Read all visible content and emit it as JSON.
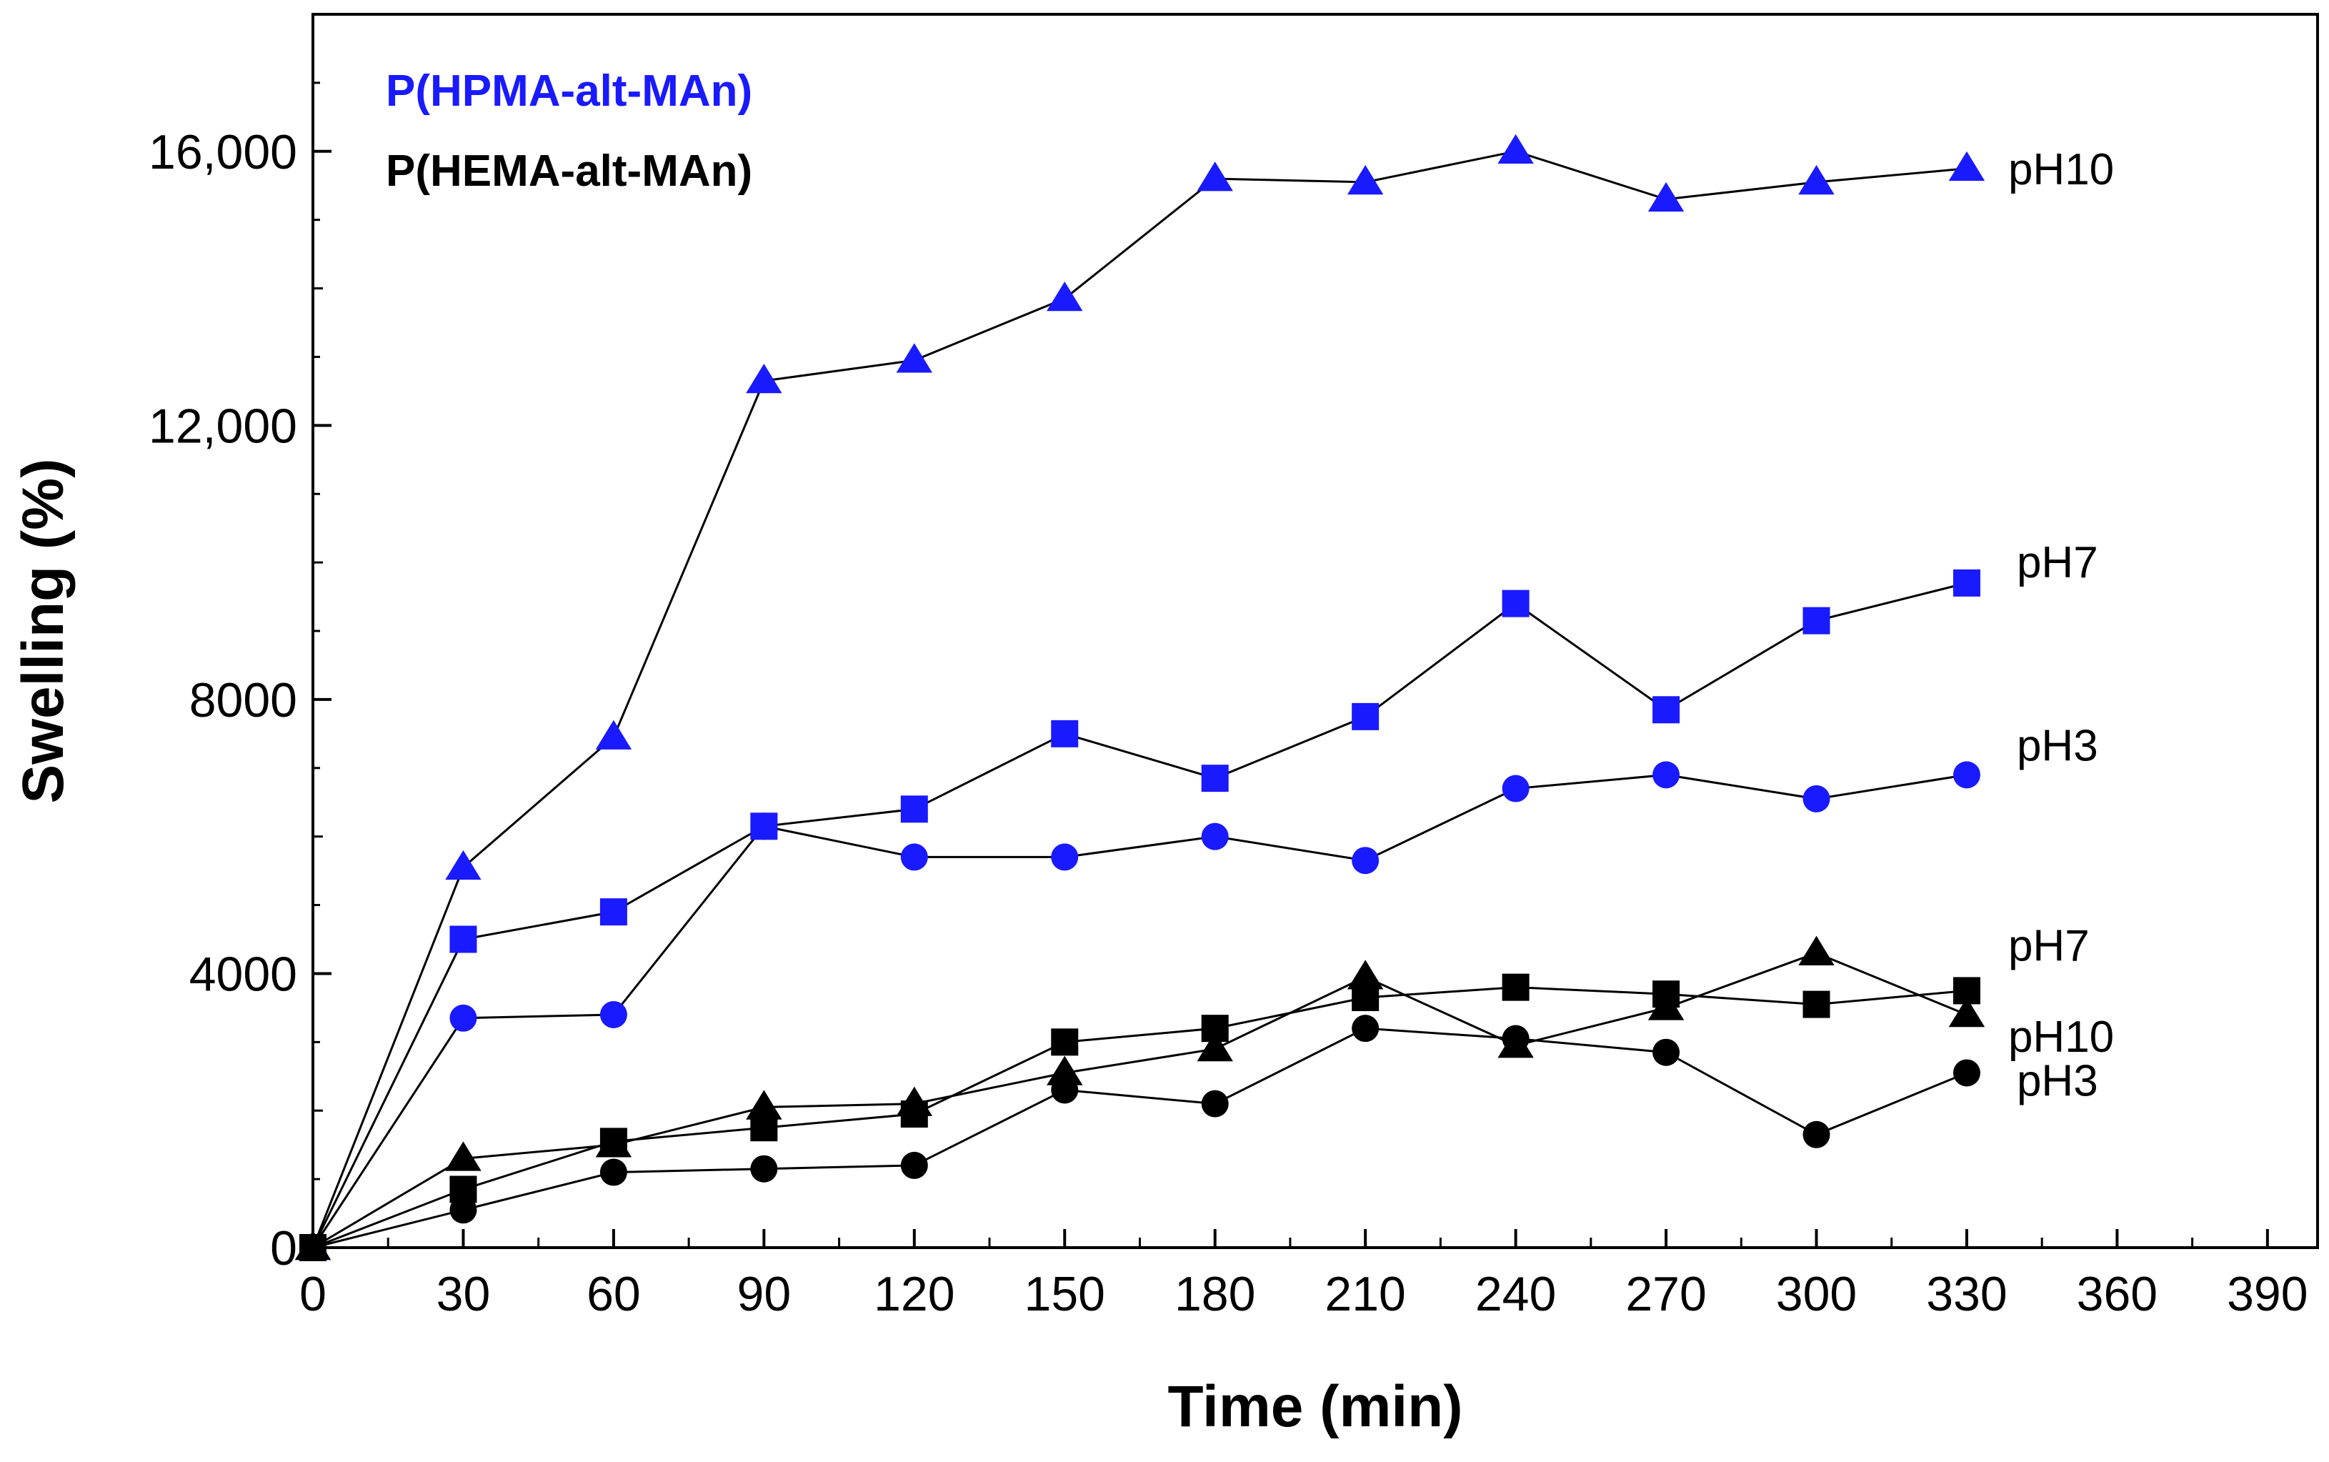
{
  "chart_data": {
    "type": "line",
    "title": "",
    "xlabel": "Time (min)",
    "ylabel": "Swelling (%)",
    "xlim": [
      0,
      400
    ],
    "ylim": [
      0,
      18000
    ],
    "x_ticks": [
      0,
      30,
      60,
      90,
      120,
      150,
      180,
      210,
      240,
      270,
      300,
      330,
      360,
      390
    ],
    "x_tick_labels": [
      "0",
      "30",
      "60",
      "90",
      "120",
      "150",
      "180",
      "210",
      "240",
      "270",
      "300",
      "330",
      "360",
      "390"
    ],
    "y_ticks": [
      0,
      4000,
      8000,
      12000,
      16000
    ],
    "y_tick_labels": [
      "0",
      "4000",
      "8000",
      "12,000",
      "16,000"
    ],
    "grid": false,
    "legend_position": "top-left",
    "legend": [
      {
        "text": "P(HPMA-alt-MAn)",
        "color": "#1a1aff"
      },
      {
        "text": "P(HEMA-alt-MAn)",
        "color": "#000000"
      }
    ],
    "x": [
      0,
      30,
      60,
      90,
      120,
      150,
      180,
      210,
      240,
      270,
      300,
      330
    ],
    "series": [
      {
        "label": "pH10",
        "color": "#1a1aff",
        "marker": "triangle",
        "values": [
          0,
          5550,
          7450,
          12650,
          12950,
          13850,
          15600,
          15550,
          16000,
          15300,
          15550,
          15750
        ]
      },
      {
        "label": "pH7",
        "color": "#1a1aff",
        "marker": "square",
        "values": [
          0,
          4500,
          4900,
          6150,
          6400,
          7500,
          6850,
          7750,
          9400,
          7850,
          9150,
          9700
        ]
      },
      {
        "label": "pH3",
        "color": "#1a1aff",
        "marker": "circle",
        "values": [
          0,
          3350,
          3400,
          6150,
          5700,
          5700,
          6000,
          5650,
          6700,
          6900,
          6550,
          6900
        ]
      },
      {
        "label": "pH7",
        "color": "#000000",
        "marker": "square",
        "values": [
          0,
          850,
          1550,
          1750,
          1950,
          3000,
          3200,
          3650,
          3800,
          3700,
          3550,
          3750
        ]
      },
      {
        "label": "pH10",
        "color": "#000000",
        "marker": "triangle",
        "values": [
          0,
          1300,
          1500,
          2050,
          2100,
          2550,
          2900,
          3950,
          2950,
          3500,
          4300,
          3400
        ]
      },
      {
        "label": "pH3",
        "color": "#000000",
        "marker": "circle",
        "values": [
          0,
          550,
          1100,
          1150,
          1200,
          2300,
          2100,
          3200,
          3050,
          2850,
          1650,
          2550
        ]
      }
    ]
  }
}
